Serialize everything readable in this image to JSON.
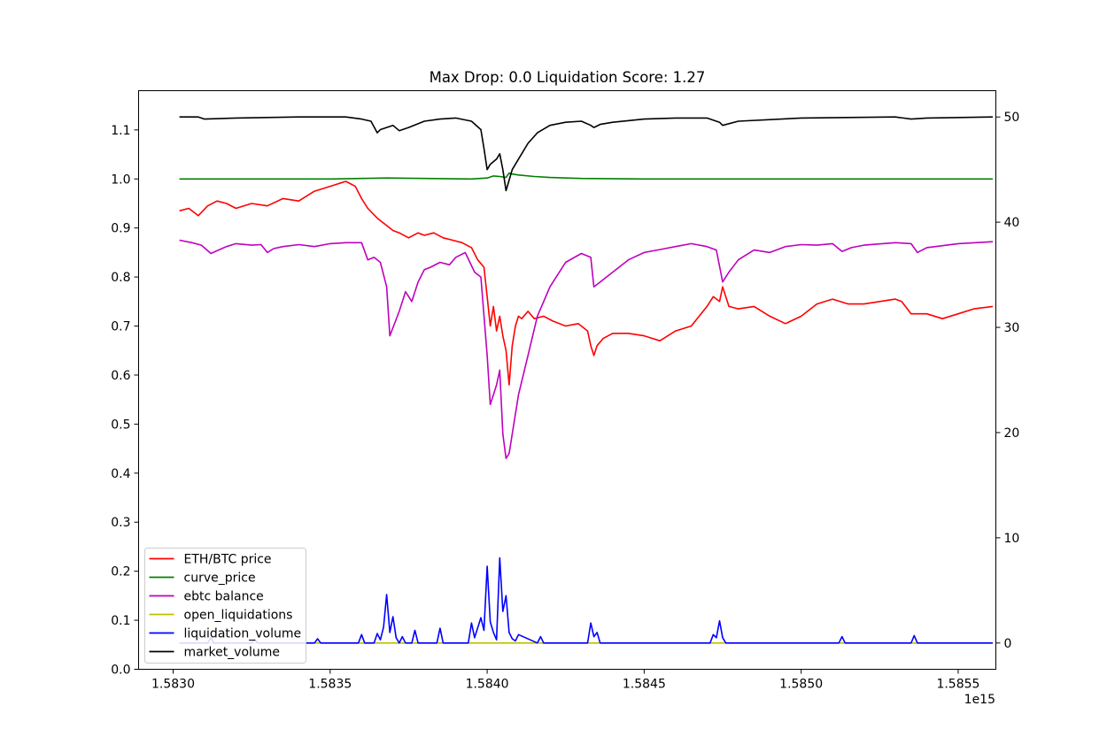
{
  "chart_data": {
    "type": "line",
    "title": "Max Drop: 0.0 Liquidation Score: 1.27",
    "xlabel": "",
    "ylabel": "",
    "x_offset_label": "1e15",
    "xlim": [
      1.58289,
      1.58562
    ],
    "ylim_left": [
      0.0,
      1.18
    ],
    "ylim_right": [
      -2.5,
      52.5
    ],
    "x_ticks": [
      {
        "value": 1.583,
        "label": "1.5830"
      },
      {
        "value": 1.5835,
        "label": "1.5835"
      },
      {
        "value": 1.584,
        "label": "1.5840"
      },
      {
        "value": 1.5845,
        "label": "1.5845"
      },
      {
        "value": 1.585,
        "label": "1.5850"
      },
      {
        "value": 1.5855,
        "label": "1.5855"
      }
    ],
    "y_ticks_left": [
      {
        "value": 0.0,
        "label": "0.0"
      },
      {
        "value": 0.1,
        "label": "0.1"
      },
      {
        "value": 0.2,
        "label": "0.2"
      },
      {
        "value": 0.3,
        "label": "0.3"
      },
      {
        "value": 0.4,
        "label": "0.4"
      },
      {
        "value": 0.5,
        "label": "0.5"
      },
      {
        "value": 0.6,
        "label": "0.6"
      },
      {
        "value": 0.7,
        "label": "0.7"
      },
      {
        "value": 0.8,
        "label": "0.8"
      },
      {
        "value": 0.9,
        "label": "0.9"
      },
      {
        "value": 1.0,
        "label": "1.0"
      },
      {
        "value": 1.1,
        "label": "1.1"
      }
    ],
    "y_ticks_right": [
      {
        "value": 0,
        "label": "0"
      },
      {
        "value": 10,
        "label": "10"
      },
      {
        "value": 20,
        "label": "20"
      },
      {
        "value": 30,
        "label": "30"
      },
      {
        "value": 40,
        "label": "40"
      },
      {
        "value": 50,
        "label": "50"
      }
    ],
    "grid": false,
    "legend_position": "lower-left",
    "series": [
      {
        "name": "ETH/BTC price",
        "color": "#ff0000",
        "axis": "left",
        "x": [
          1.58302,
          1.58305,
          1.58308,
          1.58311,
          1.58314,
          1.58317,
          1.5832,
          1.58325,
          1.5833,
          1.58335,
          1.5834,
          1.58345,
          1.5835,
          1.58355,
          1.58358,
          1.5836,
          1.58362,
          1.58365,
          1.58368,
          1.5837,
          1.58372,
          1.58375,
          1.58378,
          1.5838,
          1.58383,
          1.58386,
          1.58389,
          1.58392,
          1.58395,
          1.58397,
          1.58399,
          1.584,
          1.58401,
          1.58402,
          1.58403,
          1.58404,
          1.58405,
          1.58406,
          1.58407,
          1.58408,
          1.58409,
          1.5841,
          1.58411,
          1.58413,
          1.58415,
          1.58418,
          1.58421,
          1.58425,
          1.58429,
          1.58432,
          1.58433,
          1.58434,
          1.58435,
          1.58437,
          1.5844,
          1.58445,
          1.5845,
          1.58455,
          1.5846,
          1.58465,
          1.5847,
          1.58472,
          1.58474,
          1.58475,
          1.58477,
          1.5848,
          1.58485,
          1.5849,
          1.58495,
          1.585,
          1.58505,
          1.5851,
          1.58515,
          1.5852,
          1.58525,
          1.5853,
          1.58532,
          1.58535,
          1.5854,
          1.58545,
          1.5855,
          1.58555,
          1.58561
        ],
        "y": [
          0.935,
          0.94,
          0.925,
          0.945,
          0.955,
          0.95,
          0.94,
          0.95,
          0.945,
          0.96,
          0.955,
          0.975,
          0.985,
          0.995,
          0.985,
          0.96,
          0.94,
          0.92,
          0.905,
          0.895,
          0.89,
          0.88,
          0.89,
          0.885,
          0.89,
          0.88,
          0.875,
          0.87,
          0.86,
          0.835,
          0.82,
          0.76,
          0.7,
          0.74,
          0.69,
          0.72,
          0.68,
          0.65,
          0.58,
          0.66,
          0.7,
          0.72,
          0.715,
          0.73,
          0.715,
          0.72,
          0.71,
          0.7,
          0.705,
          0.69,
          0.66,
          0.64,
          0.66,
          0.675,
          0.685,
          0.685,
          0.68,
          0.67,
          0.69,
          0.7,
          0.74,
          0.76,
          0.75,
          0.78,
          0.74,
          0.735,
          0.74,
          0.72,
          0.705,
          0.72,
          0.745,
          0.755,
          0.745,
          0.745,
          0.75,
          0.755,
          0.75,
          0.725,
          0.725,
          0.715,
          0.725,
          0.735,
          0.74
        ]
      },
      {
        "name": "curve_price",
        "color": "#008000",
        "axis": "left",
        "x": [
          1.58302,
          1.5835,
          1.58368,
          1.5838,
          1.58395,
          1.584,
          1.58402,
          1.58404,
          1.58405,
          1.58406,
          1.58407,
          1.58408,
          1.5841,
          1.58415,
          1.5842,
          1.5843,
          1.5845,
          1.585,
          1.58561
        ],
        "y": [
          1.0,
          1.0,
          1.002,
          1.001,
          1.0,
          1.002,
          1.006,
          1.005,
          1.004,
          1.003,
          1.012,
          1.01,
          1.008,
          1.005,
          1.003,
          1.001,
          1.0,
          1.0,
          1.0
        ]
      },
      {
        "name": "ebtc balance",
        "color": "#bf00bf",
        "axis": "left",
        "x": [
          1.58302,
          1.58306,
          1.58309,
          1.58312,
          1.58317,
          1.5832,
          1.58325,
          1.58328,
          1.5833,
          1.58332,
          1.58335,
          1.5834,
          1.58345,
          1.5835,
          1.58355,
          1.5836,
          1.58362,
          1.58364,
          1.58366,
          1.58368,
          1.58369,
          1.58372,
          1.58374,
          1.58376,
          1.58378,
          1.5838,
          1.58382,
          1.58385,
          1.58388,
          1.5839,
          1.58393,
          1.58396,
          1.58398,
          1.584,
          1.58401,
          1.58402,
          1.58403,
          1.58404,
          1.58405,
          1.58406,
          1.58407,
          1.58408,
          1.5841,
          1.58413,
          1.58416,
          1.5842,
          1.58425,
          1.5843,
          1.58433,
          1.58434,
          1.58436,
          1.5844,
          1.58445,
          1.5845,
          1.58455,
          1.5846,
          1.58465,
          1.5847,
          1.58473,
          1.58475,
          1.58477,
          1.5848,
          1.58485,
          1.5849,
          1.58495,
          1.585,
          1.58505,
          1.5851,
          1.58513,
          1.58516,
          1.5852,
          1.5853,
          1.58535,
          1.58537,
          1.5854,
          1.5855,
          1.58561
        ],
        "y": [
          0.875,
          0.87,
          0.865,
          0.848,
          0.862,
          0.868,
          0.865,
          0.866,
          0.85,
          0.858,
          0.862,
          0.866,
          0.862,
          0.868,
          0.87,
          0.87,
          0.835,
          0.84,
          0.83,
          0.78,
          0.68,
          0.73,
          0.77,
          0.75,
          0.79,
          0.815,
          0.82,
          0.83,
          0.825,
          0.84,
          0.85,
          0.81,
          0.8,
          0.64,
          0.54,
          0.56,
          0.58,
          0.61,
          0.48,
          0.43,
          0.44,
          0.48,
          0.56,
          0.64,
          0.72,
          0.78,
          0.83,
          0.848,
          0.84,
          0.78,
          0.79,
          0.81,
          0.835,
          0.85,
          0.856,
          0.862,
          0.868,
          0.862,
          0.855,
          0.79,
          0.81,
          0.835,
          0.855,
          0.85,
          0.862,
          0.866,
          0.865,
          0.868,
          0.852,
          0.86,
          0.865,
          0.87,
          0.868,
          0.85,
          0.86,
          0.868,
          0.872
        ]
      },
      {
        "name": "open_liquidations",
        "color": "#bfbf00",
        "axis": "right",
        "x": [
          1.58302,
          1.58561
        ],
        "y": [
          0,
          0
        ]
      },
      {
        "name": "liquidation_volume",
        "color": "#0000ff",
        "axis": "right",
        "x": [
          1.58302,
          1.58311,
          1.58312,
          1.58313,
          1.58325,
          1.58326,
          1.58327,
          1.58345,
          1.58346,
          1.58347,
          1.58359,
          1.5836,
          1.58361,
          1.58364,
          1.58365,
          1.58366,
          1.58367,
          1.58368,
          1.58369,
          1.5837,
          1.58371,
          1.58372,
          1.58373,
          1.58374,
          1.58376,
          1.58377,
          1.58378,
          1.58384,
          1.58385,
          1.58386,
          1.58394,
          1.58395,
          1.58396,
          1.58398,
          1.58399,
          1.584,
          1.58401,
          1.58402,
          1.58403,
          1.58404,
          1.58405,
          1.58406,
          1.58407,
          1.58408,
          1.58409,
          1.5841,
          1.58416,
          1.58417,
          1.58418,
          1.58432,
          1.58433,
          1.58434,
          1.58435,
          1.58436,
          1.58471,
          1.58472,
          1.58473,
          1.58474,
          1.58475,
          1.58476,
          1.58512,
          1.58513,
          1.58514,
          1.58535,
          1.58536,
          1.58537,
          1.58561
        ],
        "y": [
          0,
          0,
          0.5,
          0,
          0,
          0.3,
          0,
          0,
          0.4,
          0,
          0,
          0.8,
          0,
          0,
          0.9,
          0.3,
          1.5,
          4.6,
          1.0,
          2.5,
          0.5,
          0,
          0.6,
          0,
          0,
          1.2,
          0,
          0,
          1.4,
          0,
          0,
          1.9,
          0.5,
          2.4,
          1.2,
          7.3,
          2.0,
          1.0,
          0.3,
          8.1,
          3.0,
          4.5,
          1.0,
          0.4,
          0.2,
          0.8,
          0,
          0.6,
          0,
          0,
          1.9,
          0.6,
          1.0,
          0,
          0,
          0.8,
          0.5,
          2.1,
          0.5,
          0,
          0,
          0.6,
          0,
          0,
          0.7,
          0,
          0
        ]
      },
      {
        "name": "market_volume",
        "color": "#000000",
        "axis": "right",
        "x": [
          1.58302,
          1.58308,
          1.5831,
          1.5832,
          1.5834,
          1.58355,
          1.5836,
          1.58363,
          1.58365,
          1.58366,
          1.58368,
          1.5837,
          1.58372,
          1.58375,
          1.5838,
          1.58385,
          1.5839,
          1.58395,
          1.58398,
          1.58399,
          1.584,
          1.58401,
          1.58403,
          1.58404,
          1.58405,
          1.58406,
          1.58407,
          1.58408,
          1.5841,
          1.58413,
          1.58416,
          1.5842,
          1.58425,
          1.5843,
          1.58433,
          1.58434,
          1.58436,
          1.5844,
          1.5845,
          1.5846,
          1.5847,
          1.58474,
          1.58475,
          1.5848,
          1.585,
          1.5853,
          1.58535,
          1.5854,
          1.58561
        ],
        "y": [
          50.0,
          50.0,
          49.8,
          49.9,
          50.0,
          50.0,
          49.8,
          49.6,
          48.5,
          48.8,
          49.0,
          49.2,
          48.7,
          49.0,
          49.6,
          49.8,
          49.9,
          49.6,
          48.8,
          47.0,
          45.0,
          45.5,
          46.0,
          46.5,
          45.0,
          43.0,
          44.0,
          45.0,
          46.0,
          47.5,
          48.5,
          49.2,
          49.5,
          49.6,
          49.2,
          49.0,
          49.3,
          49.5,
          49.8,
          49.9,
          49.9,
          49.5,
          49.2,
          49.6,
          49.9,
          50.0,
          49.8,
          49.9,
          50.0
        ]
      }
    ]
  }
}
